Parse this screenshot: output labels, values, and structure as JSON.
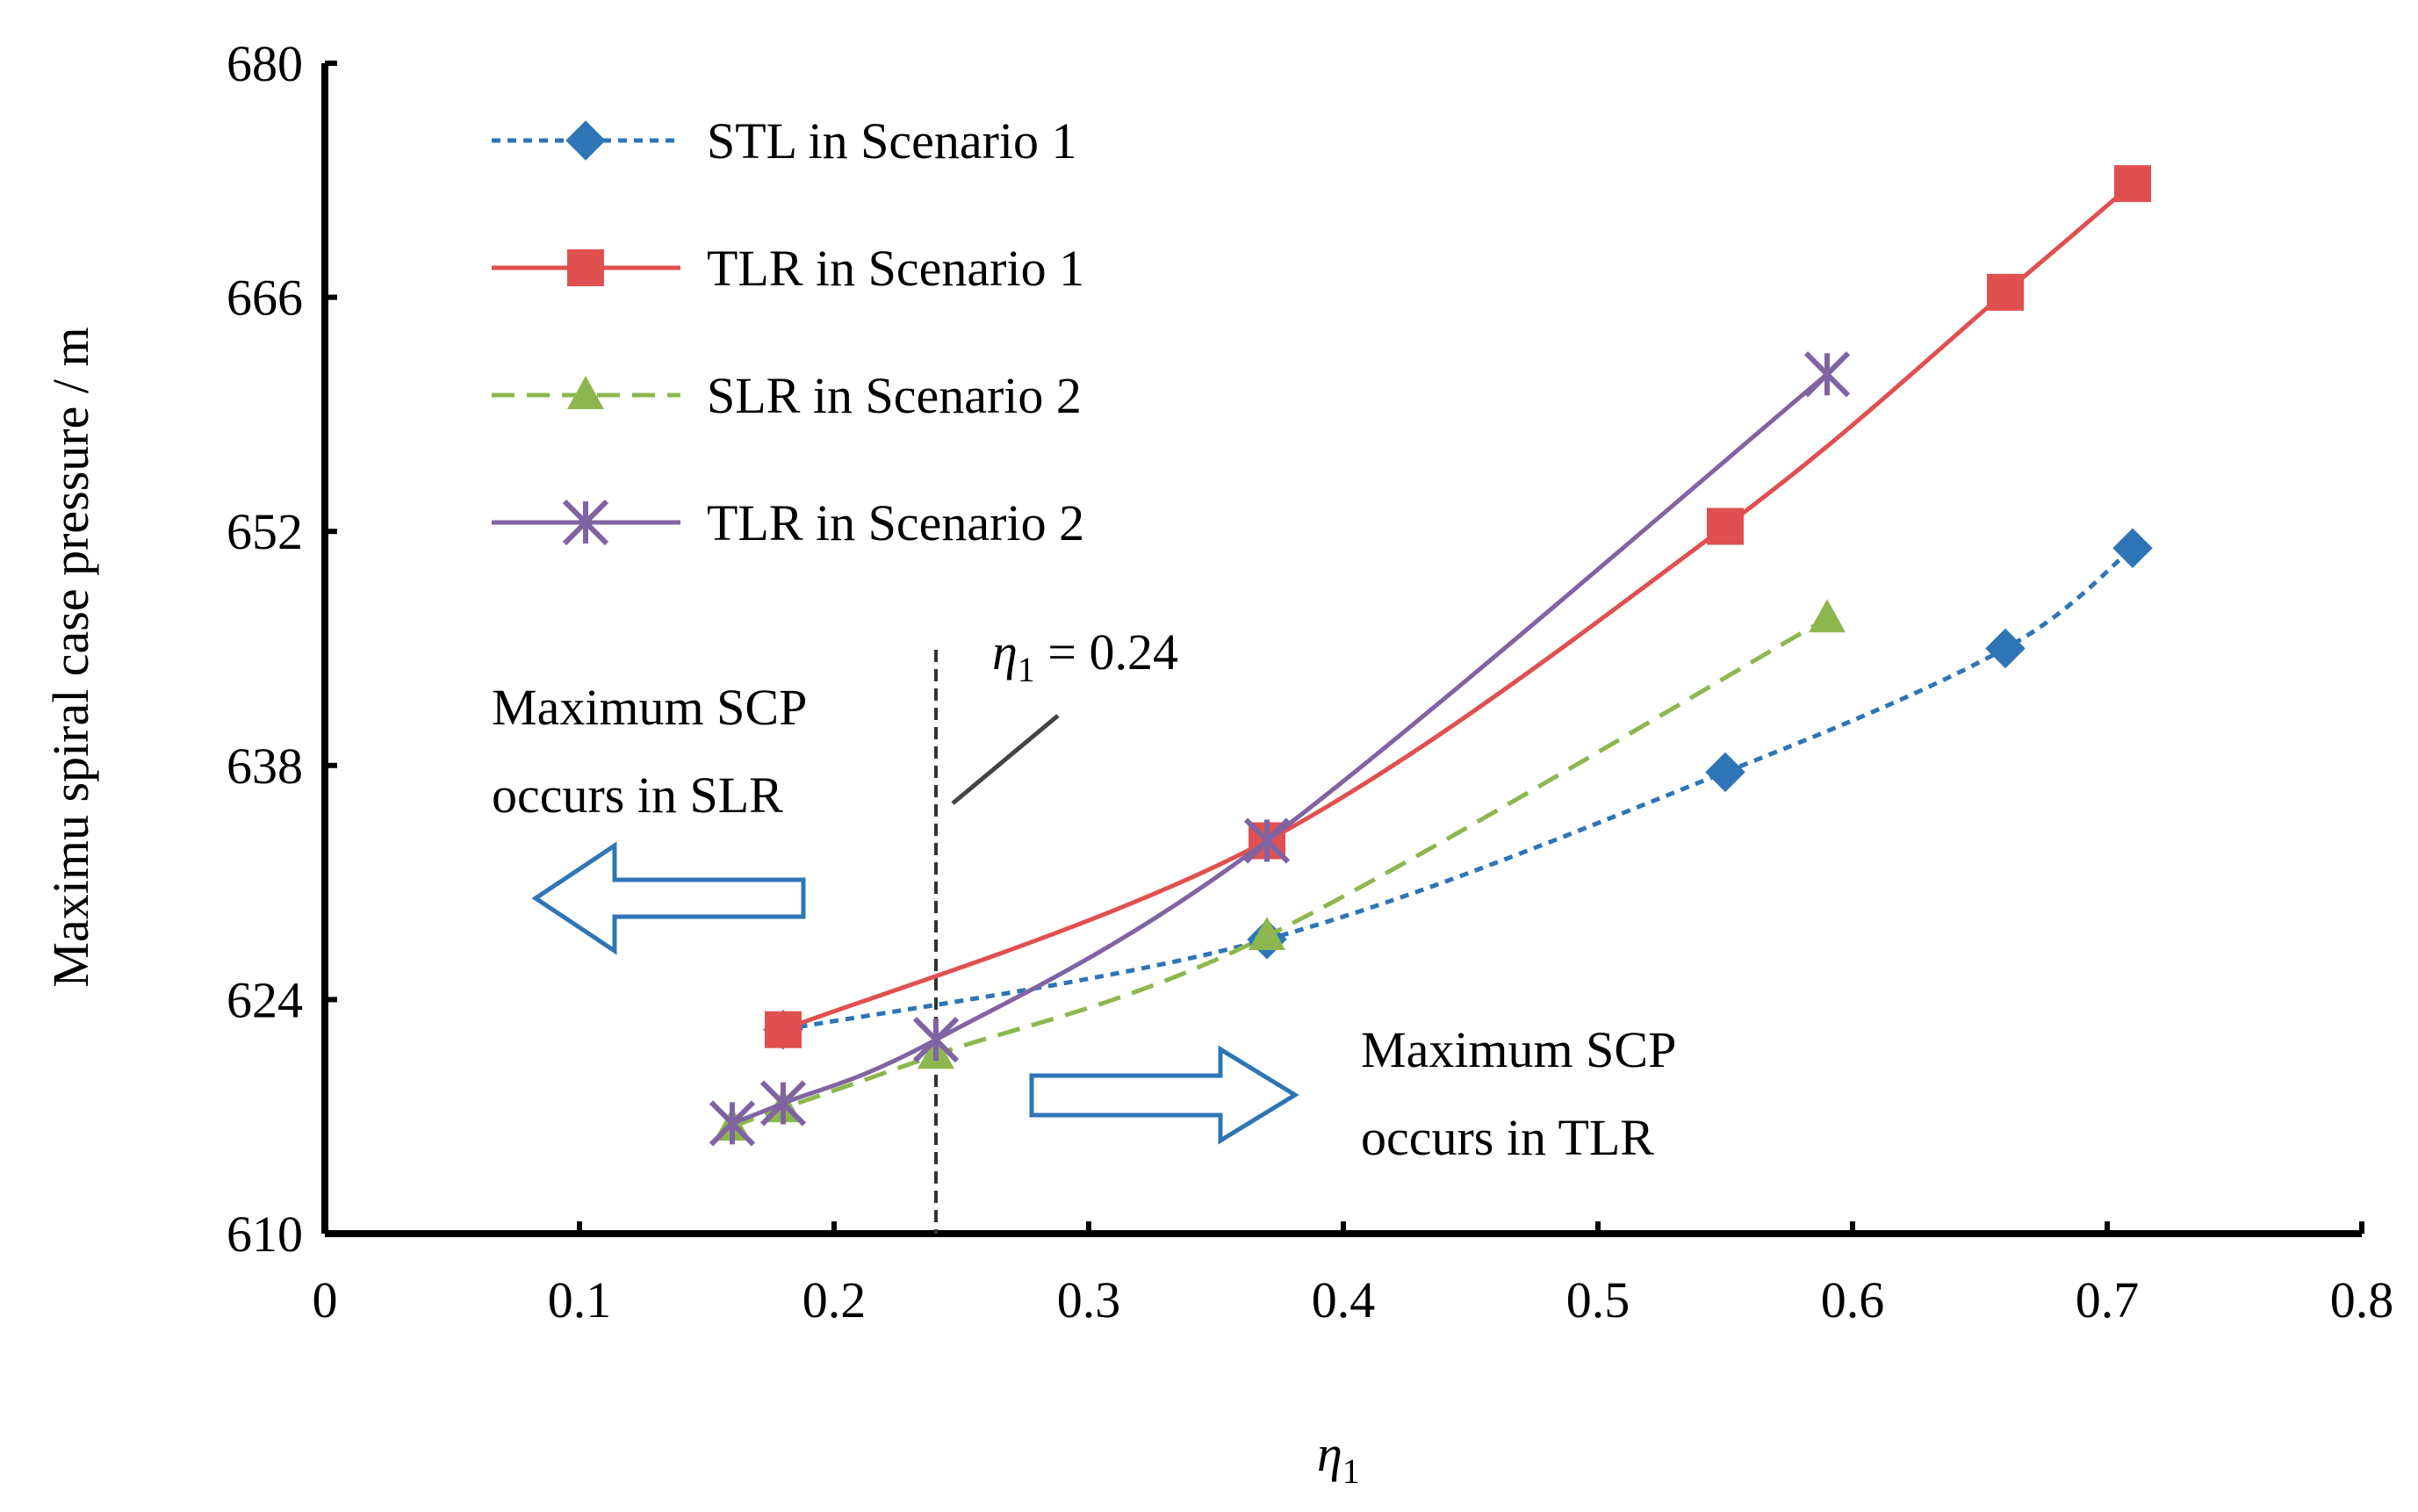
{
  "chart_data": {
    "type": "line",
    "title": "",
    "xlabel": "η",
    "xlabel_sub": "1",
    "ylabel": "Maximu spiral case pressure / m",
    "xlim": [
      0,
      0.8
    ],
    "ylim": [
      610,
      680
    ],
    "x_ticks": [
      "0",
      "0.1",
      "0.2",
      "0.3",
      "0.4",
      "0.5",
      "0.6",
      "0.7",
      "0.8"
    ],
    "y_ticks": [
      "610",
      "624",
      "638",
      "652",
      "666",
      "680"
    ],
    "grid": false,
    "legend_position": "top-left",
    "series": [
      {
        "name": "STL  in Scenario 1",
        "color": "#2E75B6",
        "line_style": "dotted",
        "marker": "diamond",
        "x": [
          0.18,
          0.37,
          0.55,
          0.66,
          0.71
        ],
        "y": [
          622.2,
          627.6,
          637.6,
          645.0,
          651.0
        ]
      },
      {
        "name": "TLR in Scenario 1",
        "color": "#E05050",
        "line_style": "solid",
        "marker": "square",
        "x": [
          0.18,
          0.37,
          0.55,
          0.66,
          0.71
        ],
        "y": [
          622.2,
          633.5,
          652.3,
          666.3,
          672.8
        ]
      },
      {
        "name": "SLR in Scenario 2",
        "color": "#8DB74E",
        "line_style": "dashed",
        "marker": "triangle",
        "x": [
          0.16,
          0.18,
          0.24,
          0.37,
          0.59
        ],
        "y": [
          616.4,
          617.5,
          620.7,
          627.8,
          646.8
        ]
      },
      {
        "name": "TLR in Scenario 2",
        "color": "#8064A2",
        "line_style": "solid",
        "marker": "star",
        "x": [
          0.16,
          0.18,
          0.24,
          0.37,
          0.59
        ],
        "y": [
          616.6,
          617.8,
          621.6,
          633.5,
          661.4
        ]
      }
    ],
    "reference_line": {
      "x": 0.24,
      "label": "η",
      "label_sub": "1",
      "label_value": " = 0.24"
    },
    "annotations": {
      "left_line1": "Maximum SCP",
      "left_line2": "occurs in SLR",
      "right_line1": "Maximum SCP",
      "right_line2": "occurs in TLR"
    },
    "arrow_color": "#2E75B6"
  }
}
